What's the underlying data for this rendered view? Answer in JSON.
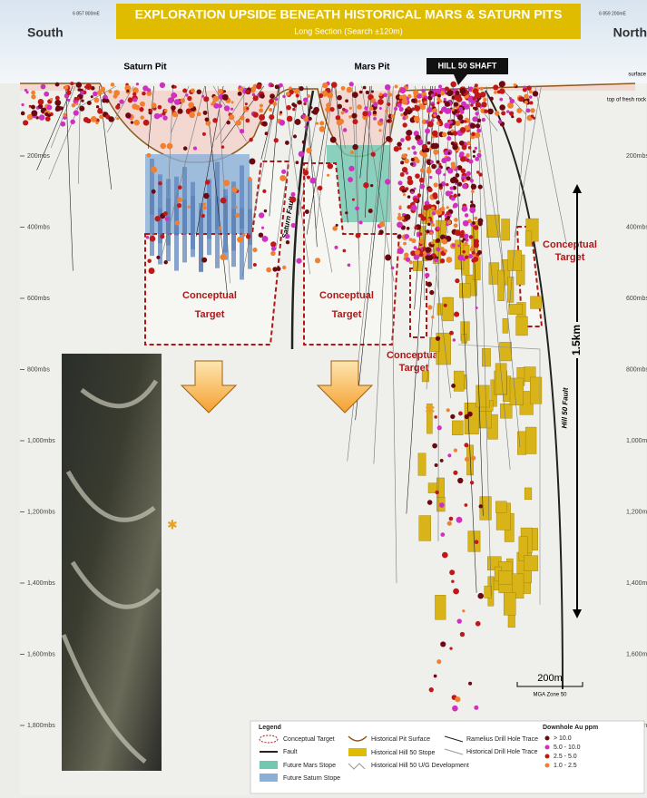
{
  "header": {
    "title": "EXPLORATION UPSIDE BENEATH HISTORICAL MARS & SATURN PITS",
    "subtitle": "Long Section (Search ±120m)",
    "left_direction": "South",
    "right_direction": "North",
    "left_easting": "6 857 800mE",
    "right_easting": "6 859 200mE"
  },
  "labels": {
    "saturn_pit": "Saturn Pit",
    "mars_pit": "Mars Pit",
    "hill_50_shaft": "HILL 50 SHAFT",
    "surface": "surface",
    "fresh_rock": "top of fresh rock",
    "saturn_fault": "Saturn Fault",
    "hill_50_fault": "Hill 50 Fault",
    "scale_depth": "1.5km",
    "scale_bar": "200m",
    "grid_zone": "MGA Zone 50"
  },
  "depth_labels": [
    "200mbs",
    "400mbs",
    "600mbs",
    "800mbs",
    "1,000mbs",
    "1,200mbs",
    "1,400mbs",
    "1,600mbs",
    "1,800mbs"
  ],
  "targets": [
    {
      "line1": "Conceptual",
      "line2": "Target"
    },
    {
      "line1": "Conceptual",
      "line2": "Target"
    },
    {
      "line1": "Conceptual",
      "line2": "Target"
    },
    {
      "line1": "Conceptual",
      "line2": "Target"
    }
  ],
  "legend": {
    "title": "Legend",
    "items": [
      "Conceptual Target",
      "Fault",
      "Future Mars Stope",
      "Future Saturn Stope",
      "Historical Pit Surface",
      "Historical Hill 50 Stope",
      "Historical Hill 50 U/G Development",
      "Ramelius Drill Hole Trace",
      "Historical Drill Hole Trace"
    ],
    "assay_title": "Downhole Au ppm",
    "assay_items": [
      "> 10.0",
      "5.0 - 10.0",
      "2.5 - 5.0",
      "1.0 - 2.5"
    ]
  }
}
